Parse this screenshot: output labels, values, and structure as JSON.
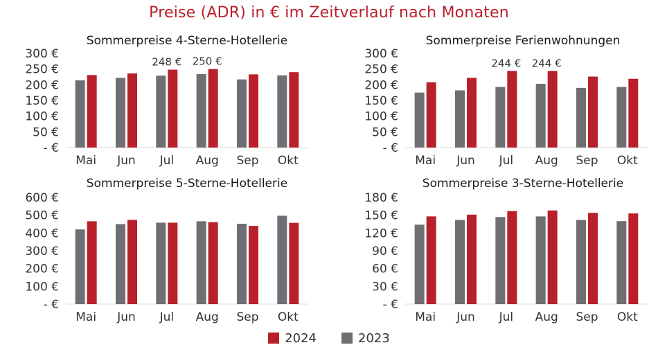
{
  "title": "Preise (ADR) in € im Zeitverlauf nach Monaten",
  "colors": {
    "2024": "#b8202a",
    "2023": "#6e6e73",
    "axis": "#d9d9d9",
    "title": "#b8202a"
  },
  "legend": [
    {
      "name": "2024",
      "color": "#b8202a"
    },
    {
      "name": "2023",
      "color": "#6e6e73"
    }
  ],
  "chart_data": [
    {
      "type": "bar",
      "title": "Sommerpreise 4-Sterne-Hotellerie",
      "categories": [
        "Mai",
        "Jun",
        "Jul",
        "Aug",
        "Sep",
        "Okt"
      ],
      "series": [
        {
          "name": "2023",
          "values": [
            214,
            222,
            229,
            234,
            217,
            230
          ]
        },
        {
          "name": "2024",
          "values": [
            231,
            236,
            248,
            250,
            233,
            240
          ]
        }
      ],
      "yticks": [
        "- €",
        "50 €",
        "100 €",
        "150 €",
        "200 €",
        "250 €",
        "300 €"
      ],
      "ylim": [
        0,
        300
      ],
      "data_labels": [
        {
          "category": "Jul",
          "series": "2024",
          "text": "248 €"
        },
        {
          "category": "Aug",
          "series": "2024",
          "text": "250 €"
        }
      ]
    },
    {
      "type": "bar",
      "title": "Sommerpreise Ferienwohnungen",
      "categories": [
        "Mai",
        "Jun",
        "Jul",
        "Aug",
        "Sep",
        "Okt"
      ],
      "series": [
        {
          "name": "2023",
          "values": [
            175,
            182,
            193,
            203,
            190,
            193
          ]
        },
        {
          "name": "2024",
          "values": [
            208,
            222,
            244,
            244,
            226,
            219
          ]
        }
      ],
      "yticks": [
        "- €",
        "50 €",
        "100 €",
        "150 €",
        "200 €",
        "250 €",
        "300 €"
      ],
      "ylim": [
        0,
        300
      ],
      "data_labels": [
        {
          "category": "Jul",
          "series": "2024",
          "text": "244 €"
        },
        {
          "category": "Aug",
          "series": "2024",
          "text": "244 €"
        }
      ]
    },
    {
      "type": "bar",
      "title": "Sommerpreise 5-Sterne-Hotellerie",
      "categories": [
        "Mai",
        "Jun",
        "Jul",
        "Aug",
        "Sep",
        "Okt"
      ],
      "series": [
        {
          "name": "2023",
          "values": [
            420,
            450,
            458,
            466,
            452,
            497
          ]
        },
        {
          "name": "2024",
          "values": [
            466,
            474,
            458,
            461,
            440,
            457
          ]
        }
      ],
      "yticks": [
        "- €",
        "100 €",
        "200 €",
        "300 €",
        "400 €",
        "500 €",
        "600 €"
      ],
      "ylim": [
        0,
        600
      ],
      "data_labels": []
    },
    {
      "type": "bar",
      "title": "Sommerpreise 3-Sterne-Hotellerie",
      "categories": [
        "Mai",
        "Jun",
        "Jul",
        "Aug",
        "Sep",
        "Okt"
      ],
      "series": [
        {
          "name": "2023",
          "values": [
            134,
            142,
            147,
            148,
            142,
            140
          ]
        },
        {
          "name": "2024",
          "values": [
            148,
            151,
            157,
            158,
            154,
            153
          ]
        }
      ],
      "yticks": [
        "- €",
        "30 €",
        "60 €",
        "90 €",
        "120 €",
        "150 €",
        "180 €"
      ],
      "ylim": [
        0,
        180
      ],
      "data_labels": []
    }
  ]
}
